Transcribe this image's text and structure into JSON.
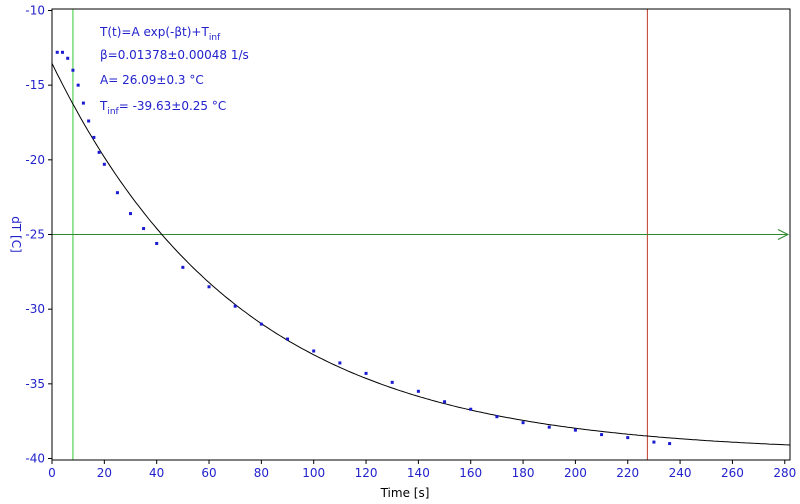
{
  "chart_data": {
    "type": "scatter",
    "title": "",
    "xlabel": "Time [s]",
    "ylabel": "dT [C]",
    "xlim": [
      0,
      282
    ],
    "ylim": [
      -40.1,
      -9.9
    ],
    "x_ticks": [
      0,
      20,
      40,
      60,
      80,
      100,
      120,
      140,
      160,
      180,
      200,
      220,
      240,
      260,
      280
    ],
    "y_ticks": [
      -10,
      -15,
      -20,
      -25,
      -30,
      -35,
      -40
    ],
    "grid": false,
    "annotations": {
      "formula": "T(t)=A exp(-βt)+T",
      "formula_sub": "inf",
      "beta": "β=0.01378±0.00048 1/s",
      "amplitude": "A= 26.09±0.3 °C",
      "tinf_prefix": "T",
      "tinf_sub": "inf",
      "tinf_value": "= -39.63±0.25 °C"
    },
    "fit": {
      "A": 26.09,
      "beta": 0.01378,
      "Tinf": -39.63,
      "x_range": [
        0,
        282
      ]
    },
    "measured": {
      "x": [
        2,
        4,
        6,
        8,
        10,
        12,
        14,
        16,
        18,
        20,
        25,
        30,
        35,
        40,
        50,
        60,
        70,
        80,
        90,
        100,
        110,
        120,
        130,
        140,
        150,
        160,
        170,
        180,
        190,
        200,
        210,
        220,
        230,
        236
      ],
      "y": [
        -12.8,
        -12.8,
        -13.2,
        -14.0,
        -15.0,
        -16.2,
        -17.4,
        -18.5,
        -19.5,
        -20.3,
        -22.2,
        -23.6,
        -24.6,
        -25.6,
        -27.2,
        -28.5,
        -29.8,
        -31.0,
        -32.0,
        -32.8,
        -33.6,
        -34.3,
        -34.9,
        -35.5,
        -36.2,
        -36.7,
        -37.2,
        -37.6,
        -37.9,
        -38.1,
        -38.4,
        -38.6,
        -38.9,
        -39.0
      ]
    },
    "cursor_green_x": 8,
    "cursor_red_x": 227.5,
    "hline_y": -25,
    "colors": {
      "axis_text": "#2222cc",
      "points": "#1a1ad0",
      "fit": "#000000",
      "green": "#33cc33",
      "red": "#c0392b",
      "hline": "#2e8b2e",
      "frame": "#000000"
    }
  }
}
